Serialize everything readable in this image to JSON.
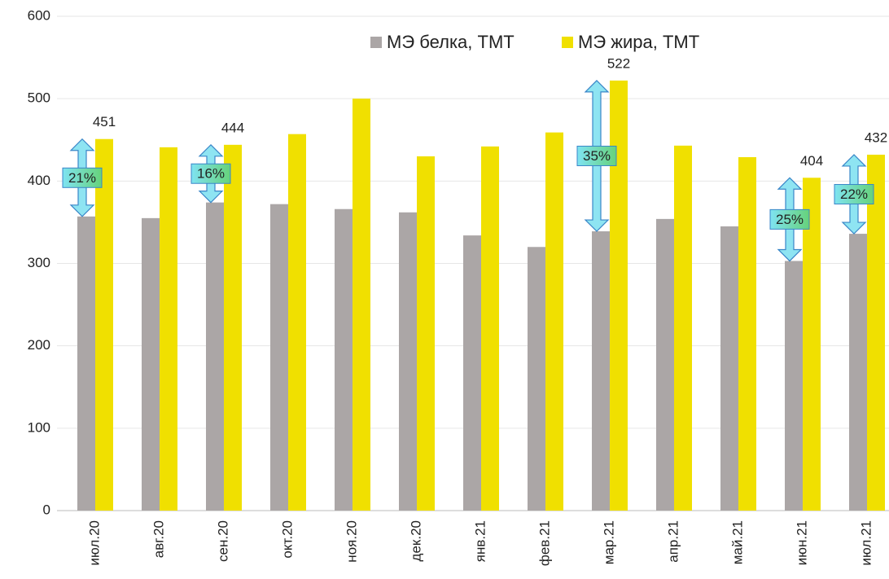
{
  "chart_data": {
    "type": "bar",
    "categories": [
      "июл.20",
      "авг.20",
      "сен.20",
      "окт.20",
      "ноя.20",
      "дек.20",
      "янв.21",
      "фев.21",
      "мар.21",
      "апр.21",
      "май.21",
      "июн.21",
      "июл.21"
    ],
    "series": [
      {
        "name": "МЭ белка, ТМТ",
        "color": "#aba6a6",
        "values": [
          357,
          355,
          374,
          372,
          366,
          362,
          334,
          320,
          339,
          354,
          345,
          303,
          336
        ]
      },
      {
        "name": "МЭ жира, ТМТ",
        "color": "#f0e000",
        "values": [
          451,
          441,
          444,
          457,
          500,
          430,
          442,
          459,
          522,
          443,
          429,
          404,
          432
        ],
        "value_labels": [
          "451",
          null,
          "444",
          null,
          null,
          null,
          null,
          null,
          "522",
          null,
          null,
          "404",
          "432"
        ]
      }
    ],
    "annotations": [
      {
        "category": "июл.20",
        "text": "21%"
      },
      {
        "category": "сен.20",
        "text": "16%"
      },
      {
        "category": "мар.21",
        "text": "35%"
      },
      {
        "category": "июн.21",
        "text": "25%"
      },
      {
        "category": "июл.21",
        "text": "22%"
      }
    ],
    "ylim": [
      0,
      600
    ],
    "yticks": [
      0,
      100,
      200,
      300,
      400,
      500,
      600
    ],
    "grid": true,
    "legend": "top"
  }
}
